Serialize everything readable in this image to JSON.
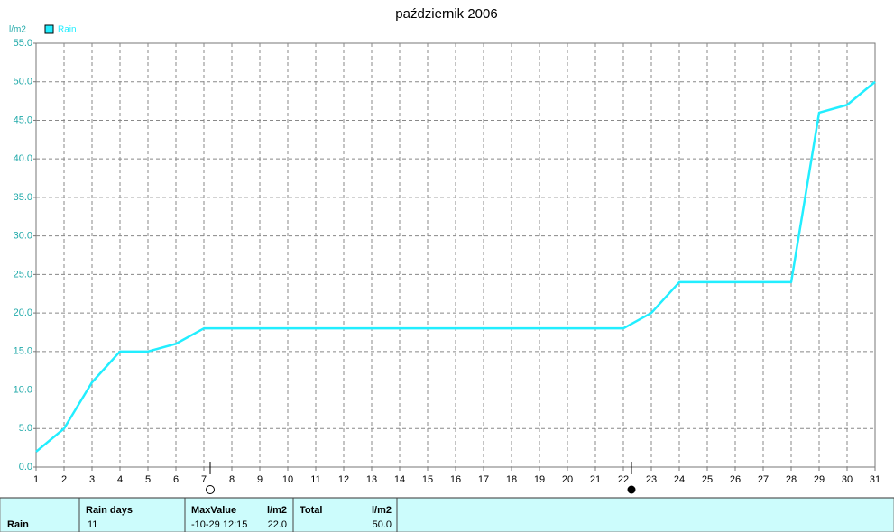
{
  "chart_data": {
    "type": "line",
    "title": "październik 2006",
    "y_label": "l/m2",
    "x": [
      1,
      2,
      3,
      4,
      5,
      6,
      7,
      8,
      9,
      10,
      11,
      12,
      13,
      14,
      15,
      16,
      17,
      18,
      19,
      20,
      21,
      22,
      23,
      24,
      25,
      26,
      27,
      28,
      29,
      30,
      31
    ],
    "xlim": [
      1,
      31
    ],
    "xticks": [
      1,
      2,
      3,
      4,
      5,
      6,
      7,
      8,
      9,
      10,
      11,
      12,
      13,
      14,
      15,
      16,
      17,
      18,
      19,
      20,
      21,
      22,
      23,
      24,
      25,
      26,
      27,
      28,
      29,
      30,
      31
    ],
    "ylim": [
      0,
      55
    ],
    "yticks": [
      {
        "value": 0,
        "label": "0.0"
      },
      {
        "value": 5,
        "label": "5.0"
      },
      {
        "value": 10,
        "label": "10.0"
      },
      {
        "value": 15,
        "label": "15.0"
      },
      {
        "value": 20,
        "label": "20.0"
      },
      {
        "value": 25,
        "label": "25.0"
      },
      {
        "value": 30,
        "label": "30.0"
      },
      {
        "value": 35,
        "label": "35.0"
      },
      {
        "value": 40,
        "label": "40.0"
      },
      {
        "value": 45,
        "label": "45.0"
      },
      {
        "value": 50,
        "label": "50.0"
      },
      {
        "value": 55,
        "label": "55.0"
      }
    ],
    "grid": true,
    "legend": "top-left",
    "series": [
      {
        "name": "Rain",
        "color": "#22eeff",
        "values": [
          2,
          5,
          11,
          15,
          15,
          16,
          18,
          18,
          18,
          18,
          18,
          18,
          18,
          18,
          18,
          18,
          18,
          18,
          18,
          18,
          18,
          18,
          20,
          24,
          24,
          24,
          24,
          24,
          46,
          47,
          50
        ]
      }
    ]
  },
  "stats_table": {
    "row_label": "Rain",
    "columns": [
      {
        "header": "Rain days",
        "value": "11"
      },
      {
        "header": "MaxValue",
        "unit": "l/m2",
        "time": "-10-29 12:15",
        "value": "22.0"
      },
      {
        "header": "Total",
        "unit": "l/m2",
        "value": "50.0"
      }
    ]
  }
}
